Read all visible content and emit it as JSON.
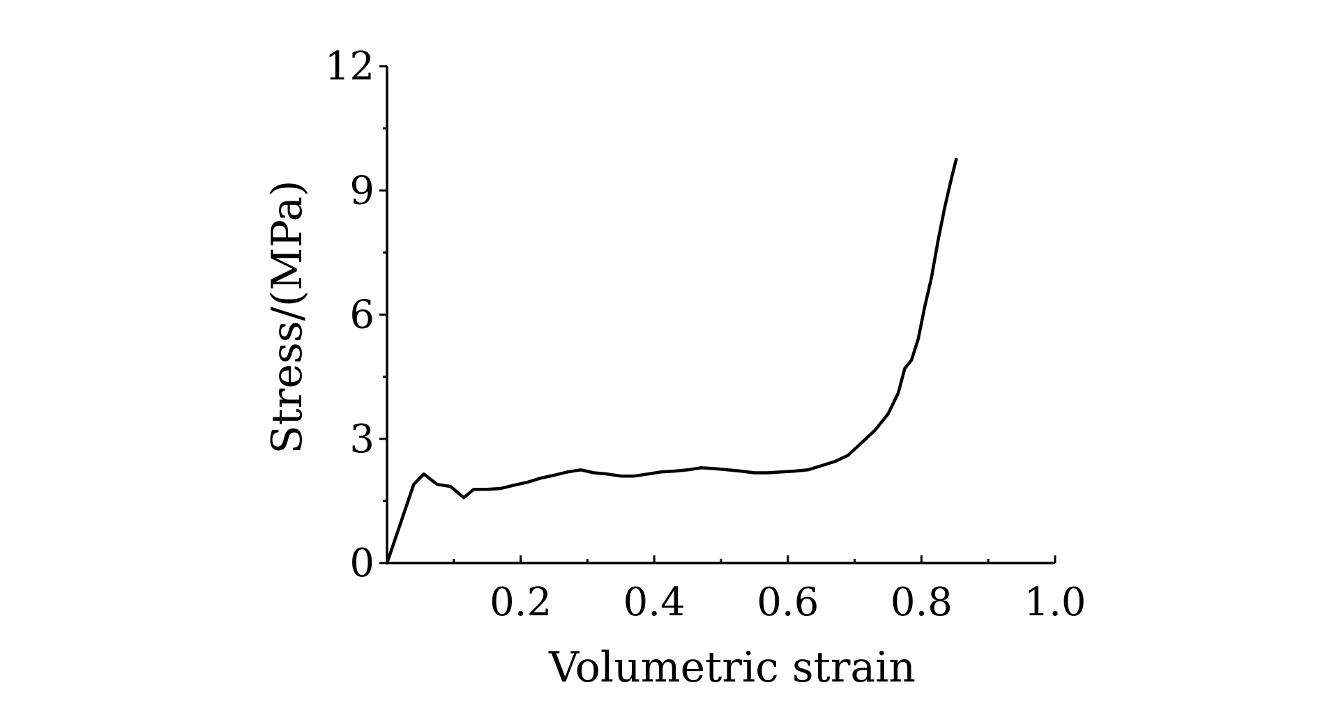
{
  "chart_data": {
    "type": "line",
    "title": "",
    "xlabel": "Volumetric strain",
    "ylabel": "Stress/(MPa)",
    "xlim": [
      0,
      1.0
    ],
    "ylim": [
      0,
      12
    ],
    "grid": false,
    "legend": "none",
    "x_ticks": [
      {
        "value": 0.2,
        "label": "0.2"
      },
      {
        "value": 0.4,
        "label": "0.4"
      },
      {
        "value": 0.6,
        "label": "0.6"
      },
      {
        "value": 0.8,
        "label": "0.8"
      },
      {
        "value": 1.0,
        "label": "1.0"
      }
    ],
    "x_minor_ticks": [
      0.1,
      0.3,
      0.5,
      0.7,
      0.9
    ],
    "y_ticks": [
      {
        "value": 0,
        "label": "0"
      },
      {
        "value": 3,
        "label": "3"
      },
      {
        "value": 6,
        "label": "6"
      },
      {
        "value": 9,
        "label": "9"
      },
      {
        "value": 12,
        "label": "12"
      }
    ],
    "y_minor_ticks": [
      1.5,
      4.5,
      7.5,
      10.5
    ],
    "series": [
      {
        "color": "#000000",
        "x": [
          0,
          0.04,
          0.055,
          0.075,
          0.095,
          0.115,
          0.13,
          0.15,
          0.17,
          0.19,
          0.21,
          0.23,
          0.25,
          0.27,
          0.29,
          0.31,
          0.33,
          0.35,
          0.37,
          0.39,
          0.41,
          0.43,
          0.45,
          0.47,
          0.49,
          0.51,
          0.53,
          0.55,
          0.57,
          0.59,
          0.61,
          0.63,
          0.65,
          0.67,
          0.69,
          0.71,
          0.73,
          0.75,
          0.765,
          0.775,
          0.785,
          0.795,
          0.805,
          0.815,
          0.825,
          0.835,
          0.845,
          0.852
        ],
        "y": [
          0,
          1.9,
          2.15,
          1.9,
          1.85,
          1.58,
          1.78,
          1.78,
          1.8,
          1.88,
          1.95,
          2.05,
          2.12,
          2.2,
          2.25,
          2.18,
          2.15,
          2.1,
          2.1,
          2.15,
          2.2,
          2.22,
          2.25,
          2.3,
          2.28,
          2.25,
          2.22,
          2.18,
          2.18,
          2.2,
          2.22,
          2.25,
          2.35,
          2.45,
          2.6,
          2.9,
          3.2,
          3.6,
          4.1,
          4.7,
          4.9,
          5.4,
          6.2,
          6.9,
          7.8,
          8.6,
          9.3,
          9.75
        ]
      }
    ]
  }
}
